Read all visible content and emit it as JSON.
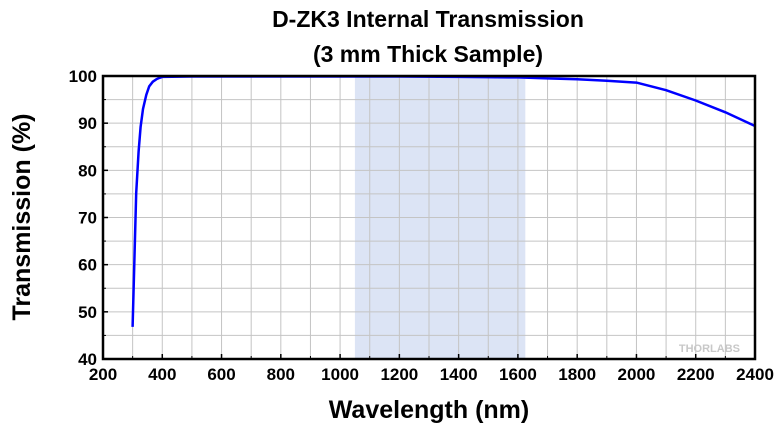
{
  "chart_data": {
    "type": "line",
    "title": "D-ZK3 Internal Transmission",
    "subtitle": "(3 mm Thick Sample)",
    "xlabel": "Wavelength (nm)",
    "ylabel": "Transmission (%)",
    "xlim": [
      200,
      2400
    ],
    "ylim": [
      40,
      100
    ],
    "xticks": [
      200,
      400,
      600,
      800,
      1000,
      1200,
      1400,
      1600,
      1800,
      2000,
      2200,
      2400
    ],
    "yticks": [
      40,
      50,
      60,
      70,
      80,
      90,
      100
    ],
    "grid": true,
    "shaded_region": {
      "x": [
        1050,
        1625
      ],
      "color": "#dce4f5"
    },
    "series_color": "#0000ff",
    "series": [
      {
        "x": [
          300,
          306,
          312,
          320,
          327,
          335,
          346,
          356,
          368,
          380,
          390,
          400,
          500,
          800,
          1000,
          1200,
          1400,
          1600,
          1700,
          1800,
          1900,
          2000,
          2100,
          2200,
          2300,
          2400
        ],
        "y": [
          46.8,
          61,
          75.2,
          84,
          89.2,
          93,
          96,
          97.8,
          98.8,
          99.3,
          99.6,
          99.8,
          99.9,
          99.9,
          99.9,
          99.9,
          99.8,
          99.7,
          99.5,
          99.3,
          99.0,
          98.6,
          97.0,
          94.8,
          92.3,
          89.4
        ]
      }
    ],
    "watermark": "THORLABS"
  }
}
